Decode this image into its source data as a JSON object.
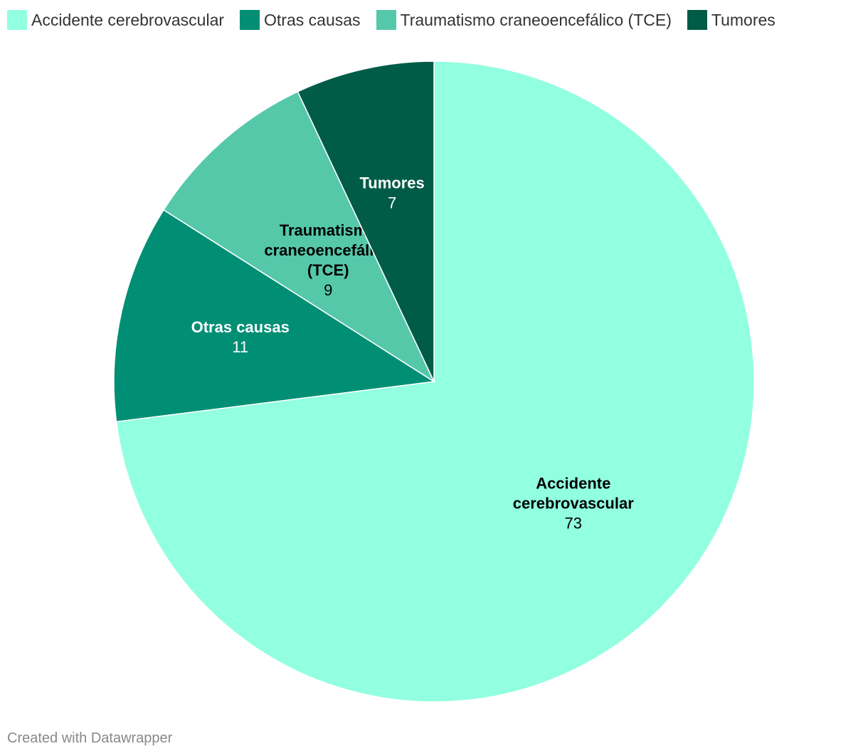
{
  "chart_data": {
    "type": "pie",
    "categories": [
      "Accidente cerebrovascular",
      "Otras causas",
      "Traumatismo craneoencefálico (TCE)",
      "Tumores"
    ],
    "values": [
      73,
      11,
      9,
      7
    ],
    "colors": [
      "#91ffe0",
      "#008f74",
      "#55c8aa",
      "#005c47"
    ],
    "label_lines": [
      [
        "Accidente",
        "cerebrovascular"
      ],
      [
        "Otras causas"
      ],
      [
        "Traumatismo",
        "craneoencefálico",
        "(TCE)"
      ],
      [
        "Tumores"
      ]
    ],
    "label_text_colors": [
      "#000000",
      "#ffffff",
      "#000000",
      "#ffffff"
    ],
    "start_angle_deg": 0,
    "direction": "clockwise",
    "legend_position": "top-left"
  },
  "footer": {
    "credit": "Created with Datawrapper"
  }
}
